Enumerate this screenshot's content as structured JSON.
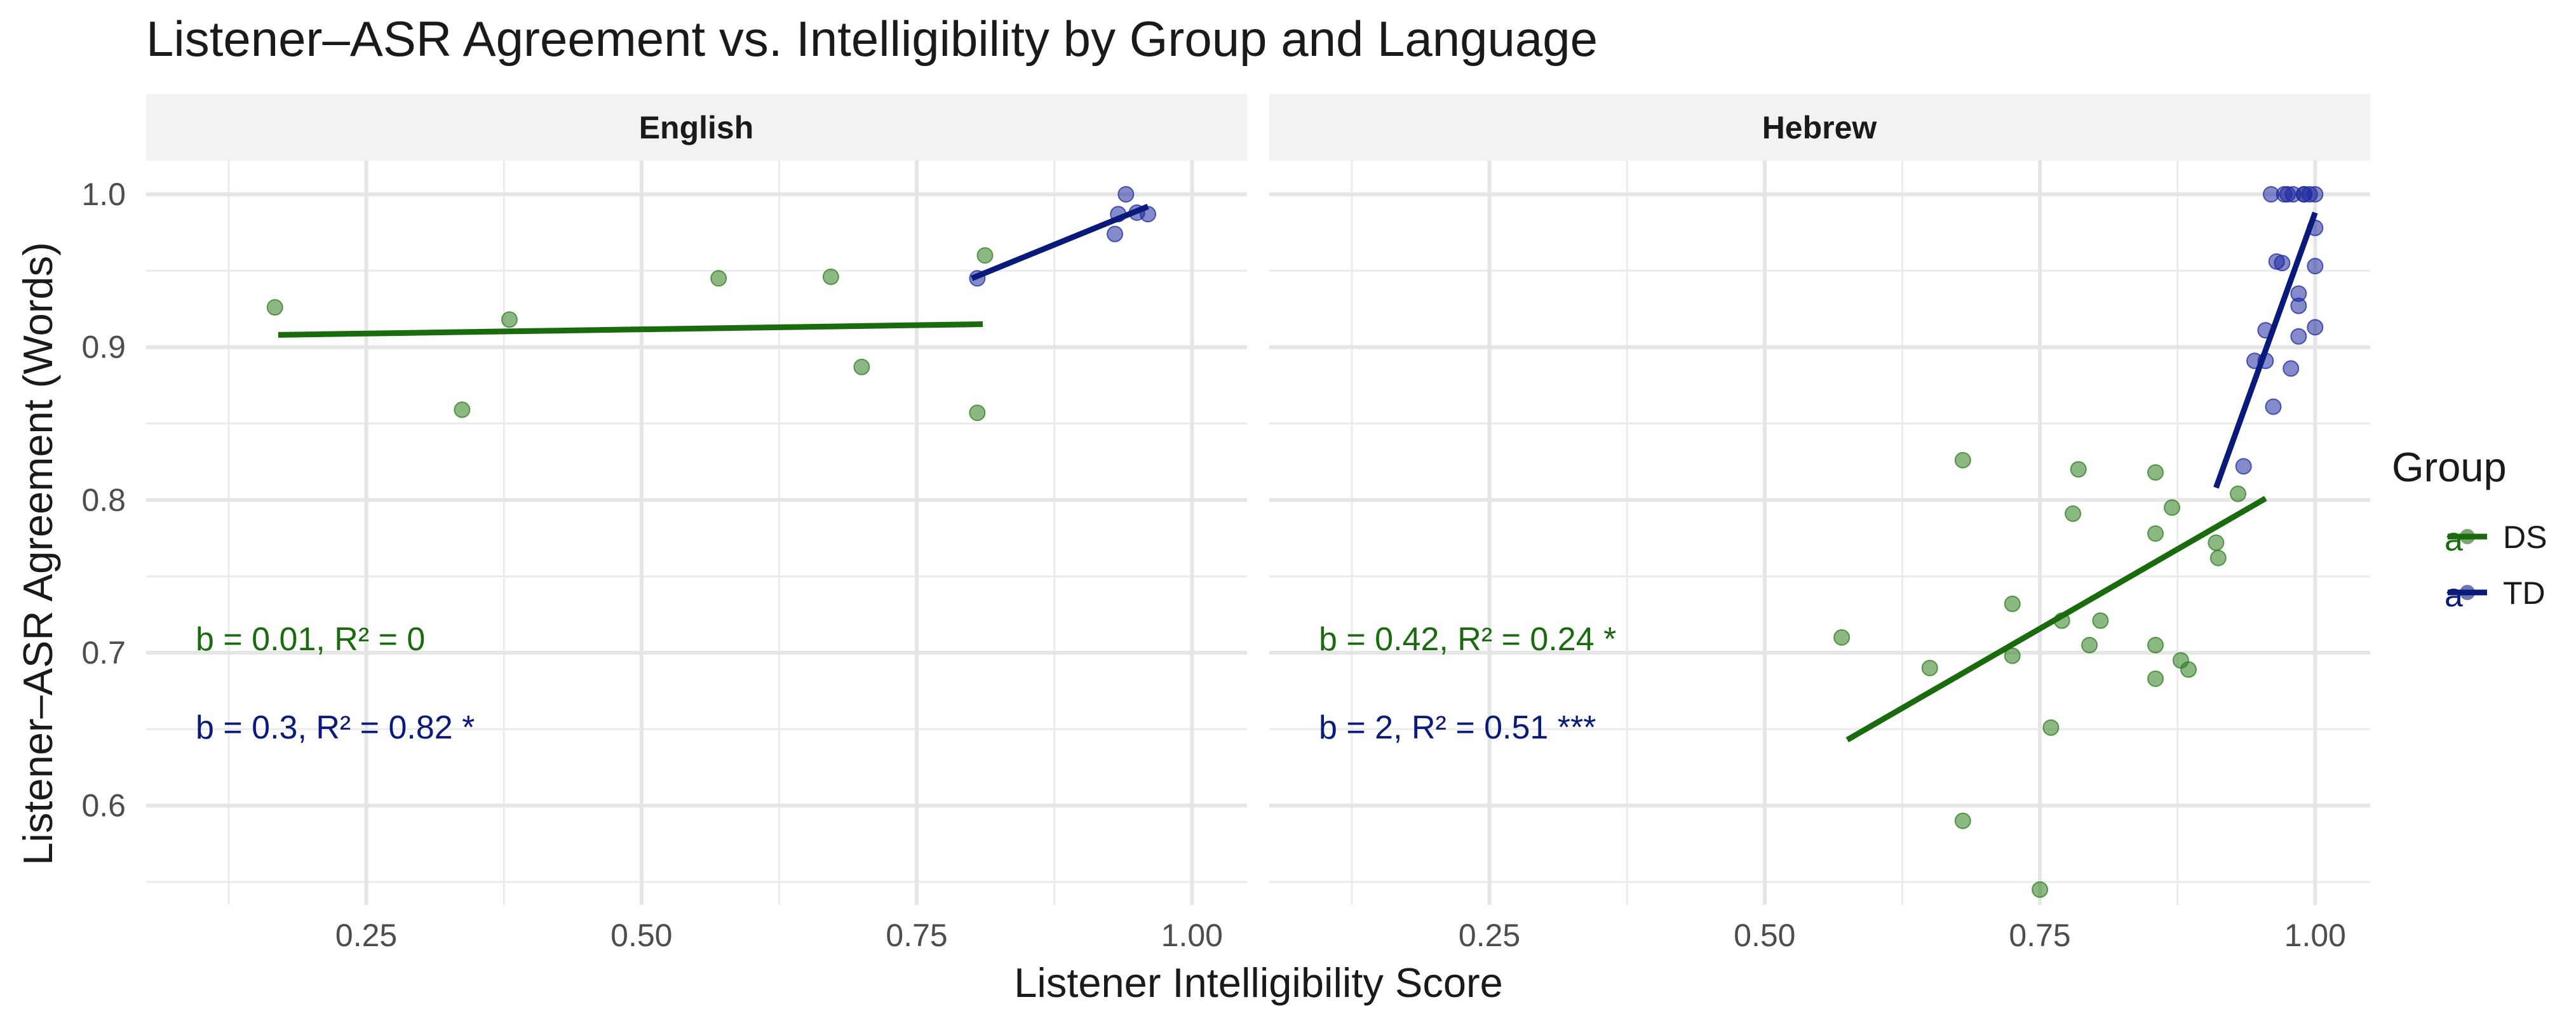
{
  "chart_data": {
    "type": "scatter",
    "title": "Listener–ASR Agreement vs. Intelligibility by Group and Language",
    "xlabel": "Listener Intelligibility Score",
    "ylabel": "Listener–ASR Agreement (Words)",
    "xlim": [
      0.05,
      1.05
    ],
    "ylim": [
      0.535,
      1.022
    ],
    "x_ticks": [
      0.25,
      0.5,
      0.75,
      1.0
    ],
    "x_tick_labels": [
      "0.25",
      "0.50",
      "0.75",
      "1.00"
    ],
    "y_ticks": [
      0.6,
      0.7,
      0.8,
      0.9,
      1.0
    ],
    "y_tick_labels": [
      "0.6",
      "0.7",
      "0.8",
      "0.9",
      "1.0"
    ],
    "grid": true,
    "legend": {
      "title": "Group",
      "position": "right",
      "entries": [
        {
          "name": "DS",
          "color": "#1a6b0e",
          "glyph": "a"
        },
        {
          "name": "TD",
          "color": "#0a1a7a",
          "glyph": "a"
        }
      ]
    },
    "colors": {
      "DS": "#1a6b0e",
      "TD": "#0a1a7a",
      "DS_point": "#2e7d1e",
      "TD_point": "#1f2a9e"
    },
    "panels": [
      {
        "name": "English",
        "series": [
          {
            "name": "DS",
            "points": [
              [
                0.167,
                0.926
              ],
              [
                0.337,
                0.859
              ],
              [
                0.38,
                0.918
              ],
              [
                0.57,
                0.945
              ],
              [
                0.672,
                0.946
              ],
              [
                0.7,
                0.887
              ],
              [
                0.805,
                0.857
              ],
              [
                0.812,
                0.96
              ]
            ],
            "fit": {
              "x": [
                0.17,
                0.81
              ],
              "y": [
                0.908,
                0.915
              ]
            },
            "annotation": "b = 0.01, R² = 0"
          },
          {
            "name": "TD",
            "points": [
              [
                0.805,
                0.945
              ],
              [
                0.93,
                0.974
              ],
              [
                0.933,
                0.987
              ],
              [
                0.94,
                1.0
              ],
              [
                0.95,
                0.988
              ],
              [
                0.96,
                0.987
              ]
            ],
            "fit": {
              "x": [
                0.8,
                0.96
              ],
              "y": [
                0.945,
                0.992
              ]
            },
            "annotation": "b = 0.3, R² = 0.82 *"
          }
        ]
      },
      {
        "name": "Hebrew",
        "series": [
          {
            "name": "DS",
            "points": [
              [
                0.57,
                0.71
              ],
              [
                0.65,
                0.69
              ],
              [
                0.68,
                0.826
              ],
              [
                0.68,
                0.59
              ],
              [
                0.725,
                0.732
              ],
              [
                0.725,
                0.698
              ],
              [
                0.76,
                0.651
              ],
              [
                0.77,
                0.721
              ],
              [
                0.78,
                0.791
              ],
              [
                0.785,
                0.82
              ],
              [
                0.795,
                0.705
              ],
              [
                0.805,
                0.721
              ],
              [
                0.75,
                0.545
              ],
              [
                0.855,
                0.818
              ],
              [
                0.855,
                0.778
              ],
              [
                0.855,
                0.705
              ],
              [
                0.855,
                0.683
              ],
              [
                0.87,
                0.795
              ],
              [
                0.878,
                0.695
              ],
              [
                0.885,
                0.689
              ],
              [
                0.91,
                0.772
              ],
              [
                0.912,
                0.762
              ],
              [
                0.93,
                0.804
              ]
            ],
            "fit": {
              "x": [
                0.575,
                0.955
              ],
              "y": [
                0.643,
                0.801
              ]
            },
            "annotation": "b = 0.42, R² = 0.24 *"
          },
          {
            "name": "TD",
            "points": [
              [
                0.935,
                0.822
              ],
              [
                0.945,
                0.891
              ],
              [
                0.955,
                0.911
              ],
              [
                0.955,
                0.891
              ],
              [
                0.96,
                1.0
              ],
              [
                0.962,
                0.861
              ],
              [
                0.965,
                0.956
              ],
              [
                0.97,
                0.955
              ],
              [
                0.972,
                1.0
              ],
              [
                0.975,
                1.0
              ],
              [
                0.978,
                0.886
              ],
              [
                0.98,
                1.0
              ],
              [
                0.985,
                0.935
              ],
              [
                0.985,
                0.927
              ],
              [
                0.985,
                0.907
              ],
              [
                0.99,
                1.0
              ],
              [
                0.995,
                1.0
              ],
              [
                1.0,
                1.0
              ],
              [
                1.0,
                0.978
              ],
              [
                1.0,
                0.953
              ],
              [
                1.0,
                0.913
              ],
              [
                0.99,
                1.0
              ]
            ],
            "fit": {
              "x": [
                0.91,
                1.0
              ],
              "y": [
                0.808,
                0.988
              ]
            },
            "annotation": "b = 2, R² = 0.51 ***"
          }
        ]
      }
    ]
  }
}
